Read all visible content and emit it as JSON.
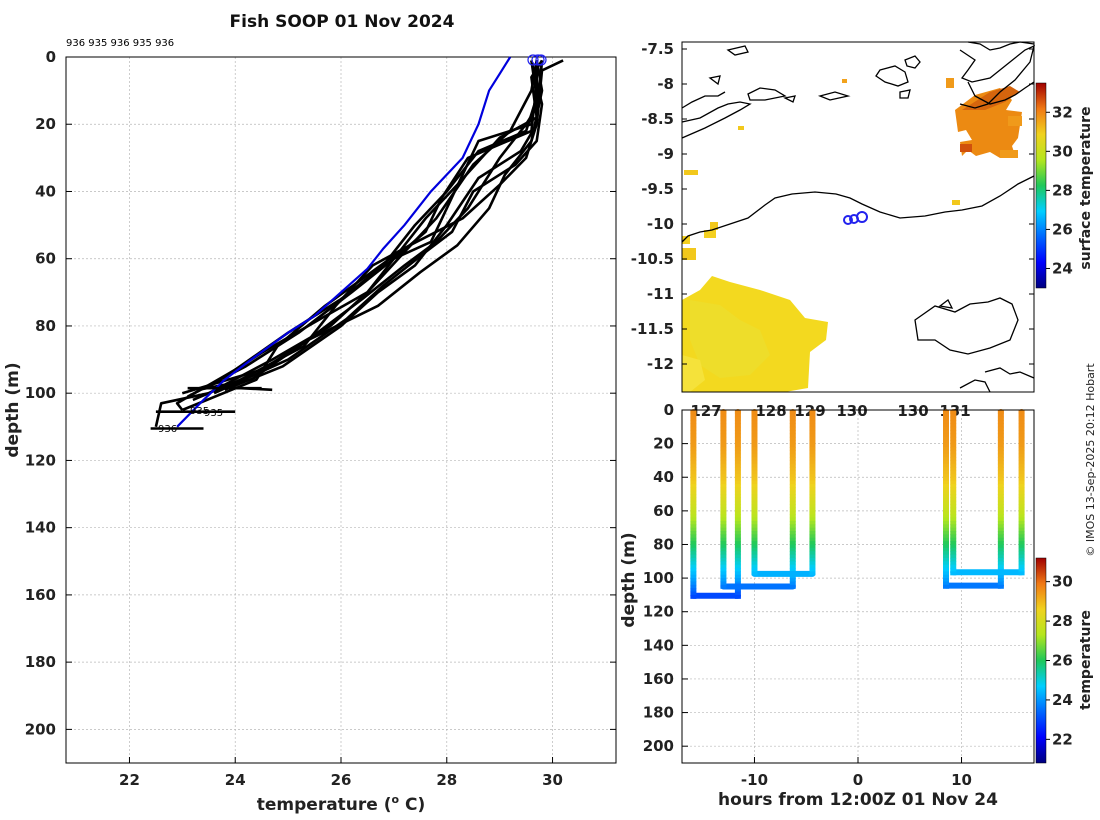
{
  "title": "Fish SOOP 01 Nov 2024",
  "credit": "© IMOS 13-Sep-2025 20:12 Hobart",
  "colors": {
    "profile": "#000000",
    "climatology": "#0000dd",
    "surface_marker": "#2222ee"
  },
  "chart_data": [
    {
      "id": "profile",
      "type": "line",
      "xlabel": "temperature (",
      "xlabel_sup": "o",
      "xlabel_end": " C)",
      "ylabel": "depth (m)",
      "xlim": [
        20.8,
        31.2
      ],
      "ylim": [
        0,
        210
      ],
      "xticks": [
        22,
        24,
        26,
        28,
        30
      ],
      "yticks": [
        0,
        20,
        40,
        60,
        80,
        100,
        120,
        140,
        160,
        180,
        200
      ],
      "top_label": "936 935 936 935 936",
      "end_labels": [
        "936",
        "935",
        "935"
      ],
      "climatology": [
        [
          29.2,
          0
        ],
        [
          29.0,
          5
        ],
        [
          28.8,
          10
        ],
        [
          28.6,
          20
        ],
        [
          28.3,
          30
        ],
        [
          27.7,
          40
        ],
        [
          27.2,
          50
        ],
        [
          26.8,
          57
        ],
        [
          26.5,
          63
        ],
        [
          26.0,
          70
        ],
        [
          25.5,
          77
        ],
        [
          25.0,
          82
        ],
        [
          24.3,
          90
        ],
        [
          23.8,
          96
        ],
        [
          23.4,
          102
        ],
        [
          22.9,
          110
        ]
      ],
      "series": [
        {
          "name": "936",
          "values": [
            [
              29.7,
              1
            ],
            [
              29.7,
              10
            ],
            [
              29.6,
              20
            ],
            [
              28.6,
              25
            ],
            [
              28.3,
              35
            ],
            [
              28.0,
              45
            ],
            [
              27.7,
              55
            ],
            [
              27.0,
              60
            ],
            [
              26.5,
              70
            ],
            [
              25.8,
              80
            ],
            [
              24.7,
              90
            ],
            [
              23.5,
              100
            ],
            [
              22.6,
              103
            ],
            [
              22.5,
              110
            ]
          ]
        },
        {
          "name": "935",
          "values": [
            [
              29.6,
              1
            ],
            [
              29.7,
              12
            ],
            [
              29.5,
              22
            ],
            [
              28.6,
              28
            ],
            [
              28.0,
              40
            ],
            [
              27.4,
              50
            ],
            [
              26.8,
              62
            ],
            [
              26.0,
              72
            ],
            [
              25.0,
              82
            ],
            [
              24.0,
              93
            ],
            [
              22.9,
              103
            ],
            [
              23.0,
              105
            ]
          ]
        },
        {
          "name": "936",
          "values": [
            [
              29.8,
              1
            ],
            [
              29.7,
              15
            ],
            [
              29.5,
              20
            ],
            [
              29.0,
              30
            ],
            [
              28.4,
              45
            ],
            [
              27.8,
              55
            ],
            [
              27.2,
              62
            ],
            [
              26.4,
              72
            ],
            [
              25.3,
              85
            ],
            [
              24.3,
              96
            ],
            [
              23.3,
              99
            ]
          ]
        },
        {
          "name": "935",
          "values": [
            [
              29.7,
              1
            ],
            [
              29.6,
              10
            ],
            [
              29.2,
              22
            ],
            [
              28.5,
              32
            ],
            [
              27.8,
              48
            ],
            [
              27.2,
              58
            ],
            [
              26.5,
              70
            ],
            [
              25.6,
              78
            ],
            [
              24.5,
              88
            ],
            [
              23.5,
              98
            ],
            [
              24.7,
              99
            ]
          ]
        },
        {
          "name": "936",
          "values": [
            [
              29.7,
              1
            ],
            [
              29.8,
              10
            ],
            [
              29.6,
              25
            ],
            [
              29.1,
              35
            ],
            [
              28.8,
              45
            ],
            [
              28.2,
              56
            ],
            [
              27.5,
              64
            ],
            [
              26.7,
              74
            ],
            [
              25.4,
              84
            ],
            [
              24.5,
              93
            ],
            [
              23.0,
              100
            ]
          ]
        },
        {
          "name": "935",
          "values": [
            [
              29.8,
              1
            ],
            [
              29.7,
              20
            ],
            [
              29.5,
              30
            ],
            [
              29.0,
              38
            ],
            [
              28.3,
              48
            ],
            [
              27.3,
              56
            ],
            [
              26.6,
              62
            ],
            [
              25.9,
              74
            ],
            [
              25.3,
              86
            ],
            [
              24.1,
              96
            ],
            [
              23.2,
              102
            ]
          ]
        },
        {
          "name": "936",
          "values": [
            [
              29.7,
              1
            ],
            [
              29.7,
              8
            ],
            [
              29.6,
              22
            ],
            [
              28.4,
              30
            ],
            [
              27.9,
              42
            ],
            [
              27.6,
              52
            ],
            [
              27.0,
              60
            ],
            [
              26.2,
              70
            ],
            [
              25.2,
              82
            ],
            [
              24.2,
              92
            ],
            [
              23.1,
              101
            ]
          ]
        },
        {
          "name": "935",
          "values": [
            [
              29.6,
              1
            ],
            [
              29.8,
              14
            ],
            [
              29.7,
              25
            ],
            [
              29.3,
              32
            ],
            [
              28.5,
              40
            ],
            [
              28.1,
              52
            ],
            [
              27.6,
              58
            ],
            [
              26.8,
              68
            ],
            [
              26.1,
              78
            ],
            [
              25.0,
              90
            ],
            [
              23.6,
              100
            ]
          ]
        },
        {
          "name": "936",
          "values": [
            [
              29.8,
              1
            ],
            [
              29.6,
              6
            ],
            [
              29.7,
              18
            ],
            [
              29.0,
              24
            ],
            [
              28.2,
              38
            ],
            [
              27.6,
              48
            ],
            [
              27.1,
              58
            ],
            [
              26.4,
              66
            ],
            [
              25.7,
              74
            ],
            [
              24.8,
              86
            ],
            [
              24.4,
              96
            ],
            [
              23.0,
              105
            ]
          ]
        },
        {
          "name": "935",
          "values": [
            [
              30.2,
              1
            ],
            [
              29.8,
              4
            ],
            [
              29.7,
              20
            ],
            [
              29.4,
              28
            ],
            [
              28.6,
              36
            ],
            [
              28.0,
              50
            ],
            [
              27.4,
              62
            ],
            [
              26.7,
              70
            ],
            [
              26.0,
              80
            ],
            [
              24.9,
              92
            ],
            [
              23.8,
              99
            ]
          ]
        }
      ],
      "horizontal_marks": [
        [
          22.5,
          24.0,
          105.5
        ],
        [
          22.4,
          23.4,
          110.5
        ],
        [
          23.1,
          24.5,
          98.5
        ]
      ]
    },
    {
      "id": "map",
      "type": "heatmap",
      "ylim": [
        -12.4,
        -7.4
      ],
      "yticks": [
        -7.5,
        -8,
        -8.5,
        -9,
        -9.5,
        -10,
        -10.5,
        -11,
        -11.5,
        -12
      ],
      "xticks_partial": [
        "127",
        "128",
        "129",
        "130",
        "130",
        "131"
      ],
      "colorbar_label": "surface temperature",
      "colorbar_range": [
        23,
        33.5
      ],
      "colorbar_ticks": [
        24,
        26,
        28,
        30,
        32
      ],
      "ship_positions": [
        [
          129.1,
          -9.98
        ],
        [
          129.2,
          -9.95
        ],
        [
          129.3,
          -9.92
        ]
      ]
    },
    {
      "id": "section",
      "type": "scatter",
      "xlabel": "hours from 12:00Z 01 Nov 24",
      "ylabel": "depth (m)",
      "xlim": [
        -17,
        17
      ],
      "ylim": [
        0,
        210
      ],
      "xticks": [
        -10,
        0,
        10
      ],
      "yticks": [
        0,
        20,
        40,
        60,
        80,
        100,
        120,
        140,
        160,
        180,
        200
      ],
      "colorbar_label": "temperature",
      "colorbar_range": [
        20.8,
        31.2
      ],
      "colorbar_ticks": [
        22,
        24,
        26,
        28,
        30
      ],
      "casts": [
        {
          "t0": -15.9,
          "t1": -11.6,
          "depth": 110.5
        },
        {
          "t0": -13.0,
          "t1": -6.3,
          "depth": 105
        },
        {
          "t0": -10.0,
          "t1": -4.4,
          "depth": 97.5
        },
        {
          "t0": 8.5,
          "t1": 13.8,
          "depth": 104.5
        },
        {
          "t0": 9.2,
          "t1": 15.8,
          "depth": 96.5
        }
      ]
    }
  ]
}
